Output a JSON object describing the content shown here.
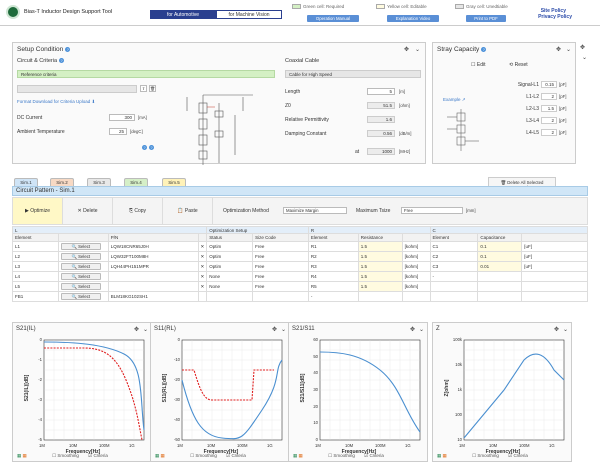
{
  "header": {
    "app_title": "Bias-T Inductor Design Support Tool",
    "tab_automotive": "for Automotive",
    "tab_machine_vision": "for Machine Vision",
    "legend_green": "Green cell: Required",
    "legend_yellow": "Yellow cell: Editable",
    "legend_gray": "Gray cell: Unedtiable",
    "btn_manual": "Operation Manual",
    "btn_video": "Explanation Video",
    "btn_pdf": "Print to PDF",
    "site_policy": "Site Policy",
    "privacy_policy": "Privacy Policy"
  },
  "setup": {
    "title": "Setup Condition",
    "circuit_title": "Circuit & Criteria",
    "reference": "Reference criteria",
    "format_link": "Format Download for Criteria Upload",
    "dc_label": "DC Current",
    "dc_value": "300",
    "dc_unit": "[mA]",
    "temp_label": "Ambient Temperature",
    "temp_value": "25",
    "temp_unit": "[degC]",
    "coax_title": "Coaxial Cable",
    "coax_value": "Cable for High Speed",
    "length_label": "Length",
    "length_value": "5",
    "length_unit": "[m]",
    "z0_label": "Z0",
    "z0_value": "51.5",
    "z0_unit": "[ohm]",
    "perm_label": "Relative Permittivity",
    "perm_value": "1.6",
    "damp_label": "Damping Constant",
    "damp_value": "0.56",
    "damp_unit": "[dB/m]",
    "at_label": "at",
    "at_value": "1000",
    "at_unit": "[MHz]"
  },
  "stray": {
    "title": "Stray Capacity",
    "edit": "Edit",
    "reset": "Reset",
    "example": "Example",
    "rows": [
      {
        "label": "Signal-L1",
        "value": "0.15",
        "unit": "[pF]"
      },
      {
        "label": "L1-L2",
        "value": "2",
        "unit": "[pF]"
      },
      {
        "label": "L2-L3",
        "value": "1.5",
        "unit": "[pF]"
      },
      {
        "label": "L3-L4",
        "value": "2",
        "unit": "[pF]"
      },
      {
        "label": "L4-L5",
        "value": "2",
        "unit": "[pF]"
      }
    ]
  },
  "sims": {
    "tabs": [
      "Sim.1",
      "Sim.2",
      "Sim.3",
      "Sim.4",
      "Sim.5"
    ],
    "delete_all": "Delete All Selected Partnumber",
    "pattern_title": "Circuit Pattern - Sim.1"
  },
  "toolbar": {
    "optimize": "Optimize",
    "delete": "Delete",
    "copy": "Copy",
    "paste": "Paste",
    "opt_method_label": "Optimization Method",
    "opt_method_value": "Maximize Margin",
    "max_tsize_label": "Maximum Tsize",
    "max_tsize_value": "Free",
    "max_tsize_unit": "[mm]"
  },
  "grid": {
    "sec_l": "L",
    "sec_opt": "Optimization Setup",
    "sec_r": "R",
    "sec_c": "C",
    "h_element": "Element",
    "h_pn": "P/N",
    "h_status": "Status",
    "h_size": "Size Code",
    "h_resistance": "Resistance",
    "h_capacitance": "Capacitance",
    "select": "Select",
    "rows": [
      {
        "el": "L1",
        "pn": "LQW18CNR65J0H",
        "status": "Optim",
        "size": "Free",
        "r": "R1",
        "rv": "1.5",
        "ru": "[kohm]",
        "c": "C1",
        "cv": "0.1",
        "cu": "[uF]"
      },
      {
        "el": "L2",
        "pn": "LQW32FT100M8H",
        "status": "Optim",
        "size": "Free",
        "r": "R2",
        "rv": "1.5",
        "ru": "[kohm]",
        "c": "C2",
        "cv": "0.1",
        "cu": "[uF]"
      },
      {
        "el": "L3",
        "pn": "LQH44PH151MPR",
        "status": "Optim",
        "size": "Free",
        "r": "R3",
        "rv": "1.5",
        "ru": "[kohm]",
        "c": "C3",
        "cv": "0.01",
        "cu": "[uF]"
      },
      {
        "el": "L4",
        "pn": "",
        "status": "None",
        "size": "Free",
        "r": "R4",
        "rv": "1.5",
        "ru": "[kohm]",
        "c": "-",
        "cv": "",
        "cu": ""
      },
      {
        "el": "L5",
        "pn": "",
        "status": "None",
        "size": "Free",
        "r": "R5",
        "rv": "1.5",
        "ru": "[kohm]",
        "c": "",
        "cv": "",
        "cu": ""
      },
      {
        "el": "FB1",
        "pn": "BLM18KG102SH1",
        "status": "",
        "size": "",
        "r": "-",
        "rv": "",
        "ru": "",
        "c": "",
        "cv": "",
        "cu": ""
      }
    ]
  },
  "charts": [
    {
      "title": "S21(IL)",
      "ylabel": "S21(IL)[dB]",
      "xlabel": "Frequency[Hz]",
      "yticks": [
        "0",
        "-1",
        "-2",
        "-3",
        "-4",
        "-5"
      ],
      "smoothing": "Smoothing",
      "criteria": "Criteria"
    },
    {
      "title": "S11(RL)",
      "ylabel": "S11(RL)[dB]",
      "xlabel": "Frequency[Hz]",
      "yticks": [
        "0",
        "-10",
        "-20",
        "-30",
        "-40",
        "-50"
      ],
      "smoothing": "Smoothing",
      "criteria": "Criteria"
    },
    {
      "title": "S21/S11",
      "ylabel": "S21/S11[dB]",
      "xlabel": "Frequency[Hz]",
      "yticks": [
        "60",
        "50",
        "40",
        "30",
        "20",
        "10",
        "0"
      ],
      "smoothing": "Smoothing",
      "criteria": "Criteria"
    },
    {
      "title": "Z",
      "ylabel": "Z[ohm]",
      "xlabel": "Frequency[Hz]",
      "yticks": [
        "100k",
        "10k",
        "1k",
        "100",
        "10"
      ],
      "smoothing": "Smoothing",
      "criteria": "Criteria"
    }
  ],
  "xticks": [
    "1M",
    "10M",
    "100M",
    "1G"
  ],
  "colors": {
    "measured": "#4a8fd0",
    "criteria": "#e02020"
  }
}
